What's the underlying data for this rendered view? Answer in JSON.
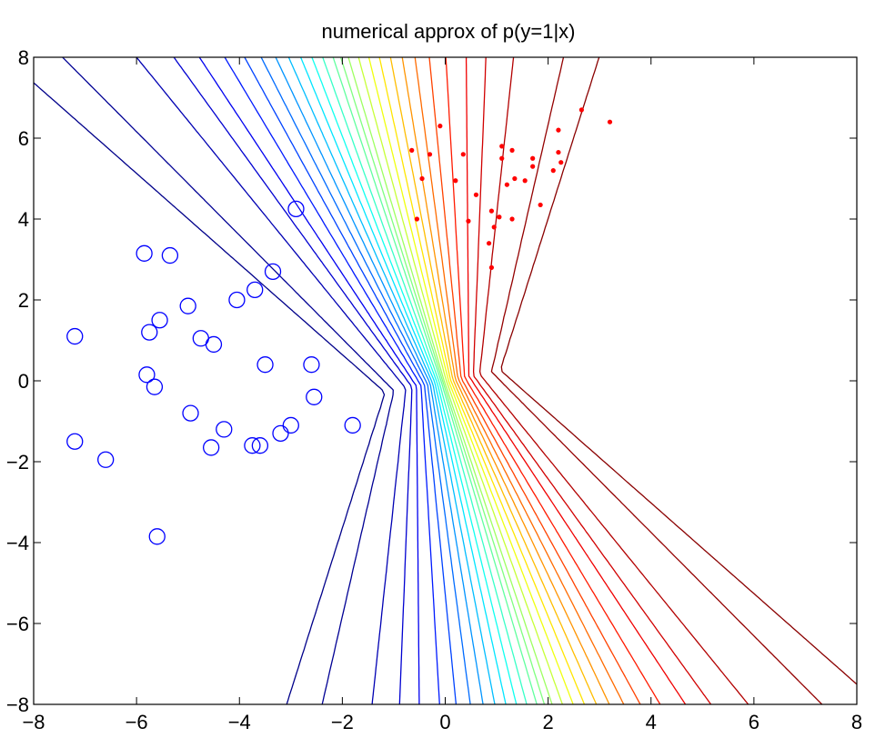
{
  "chart_data": {
    "type": "scatter",
    "title": "numerical approx of p(y=1|x)",
    "xlabel": "",
    "ylabel": "",
    "xlim": [
      -8,
      8
    ],
    "ylim": [
      -8,
      8
    ],
    "xticks": [
      -8,
      -6,
      -4,
      -2,
      0,
      2,
      4,
      6,
      8
    ],
    "yticks": [
      -8,
      -6,
      -4,
      -2,
      0,
      2,
      4,
      6,
      8
    ],
    "xtick_labels": [
      "−8",
      "−6",
      "−4",
      "−2",
      "0",
      "2",
      "4",
      "6",
      "8"
    ],
    "ytick_labels": [
      "−8",
      "−6",
      "−4",
      "−2",
      "0",
      "2",
      "4",
      "6",
      "8"
    ],
    "grid": false,
    "legend": "none",
    "series": [
      {
        "marker": "circle",
        "color": "#0000ff",
        "points": [
          [
            -7.2,
            1.1
          ],
          [
            -7.2,
            -1.5
          ],
          [
            -6.6,
            -1.95
          ],
          [
            -5.85,
            3.15
          ],
          [
            -5.8,
            0.15
          ],
          [
            -5.75,
            1.2
          ],
          [
            -5.65,
            -0.15
          ],
          [
            -5.55,
            1.5
          ],
          [
            -5.6,
            -3.85
          ],
          [
            -5.35,
            3.1
          ],
          [
            -5.0,
            1.85
          ],
          [
            -4.95,
            -0.8
          ],
          [
            -4.75,
            1.05
          ],
          [
            -4.5,
            0.9
          ],
          [
            -4.55,
            -1.65
          ],
          [
            -4.3,
            -1.2
          ],
          [
            -4.05,
            2.0
          ],
          [
            -3.75,
            -1.6
          ],
          [
            -3.7,
            2.25
          ],
          [
            -3.6,
            -1.6
          ],
          [
            -3.5,
            0.4
          ],
          [
            -3.35,
            2.7
          ],
          [
            -3.2,
            -1.3
          ],
          [
            -3.0,
            -1.1
          ],
          [
            -2.9,
            4.25
          ],
          [
            -2.6,
            0.4
          ],
          [
            -2.55,
            -0.4
          ],
          [
            -1.8,
            -1.1
          ]
        ]
      },
      {
        "marker": "dot",
        "color": "#ff0000",
        "points": [
          [
            -0.65,
            5.7
          ],
          [
            -0.55,
            4.0
          ],
          [
            -0.45,
            5.0
          ],
          [
            -0.3,
            5.6
          ],
          [
            -0.1,
            6.3
          ],
          [
            0.2,
            4.95
          ],
          [
            0.35,
            5.6
          ],
          [
            0.45,
            3.95
          ],
          [
            0.6,
            4.6
          ],
          [
            0.85,
            3.4
          ],
          [
            0.9,
            4.2
          ],
          [
            0.9,
            2.8
          ],
          [
            0.95,
            3.8
          ],
          [
            1.05,
            4.05
          ],
          [
            1.1,
            5.5
          ],
          [
            1.1,
            5.8
          ],
          [
            1.2,
            4.85
          ],
          [
            1.3,
            5.7
          ],
          [
            1.3,
            4.0
          ],
          [
            1.35,
            5.0
          ],
          [
            1.55,
            4.95
          ],
          [
            1.7,
            5.3
          ],
          [
            1.7,
            5.5
          ],
          [
            1.85,
            4.35
          ],
          [
            2.1,
            5.2
          ],
          [
            2.2,
            6.2
          ],
          [
            2.2,
            5.65
          ],
          [
            2.25,
            5.4
          ],
          [
            2.65,
            6.7
          ],
          [
            3.2,
            6.4
          ]
        ]
      }
    ],
    "contours": {
      "function": "p(y=1|x)",
      "levels": [
        0.01,
        0.02,
        0.05,
        0.08,
        0.11,
        0.15,
        0.19,
        0.23,
        0.27,
        0.31,
        0.35,
        0.39,
        0.43,
        0.47,
        0.5,
        0.53,
        0.57,
        0.61,
        0.65,
        0.69,
        0.73,
        0.77,
        0.81,
        0.85,
        0.89,
        0.92,
        0.95,
        0.98,
        0.99
      ],
      "colormap": "jet"
    }
  }
}
